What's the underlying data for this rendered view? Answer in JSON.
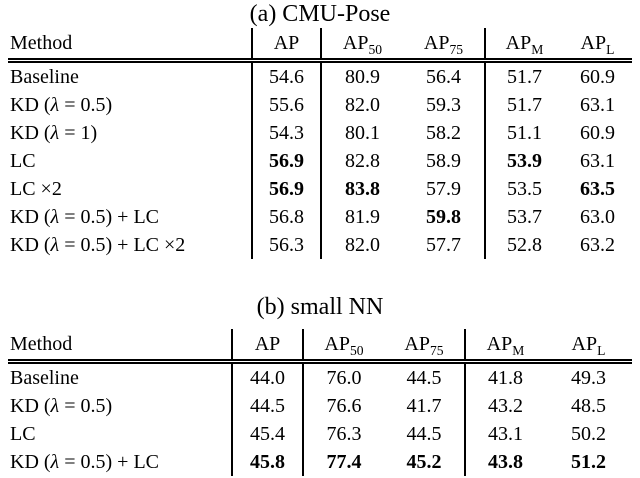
{
  "tables": [
    {
      "title": "(a) CMU-Pose",
      "columns": {
        "method": "Method",
        "headers": [
          {
            "text": "AP",
            "sub": ""
          },
          {
            "text": "AP",
            "sub": "50"
          },
          {
            "text": "AP",
            "sub": "75"
          },
          {
            "text": "AP",
            "sub": "M"
          },
          {
            "text": "AP",
            "sub": "L"
          }
        ]
      },
      "rows": [
        {
          "method": "Baseline",
          "values": [
            "54.6",
            "80.9",
            "56.4",
            "51.7",
            "60.9"
          ],
          "bold": [
            false,
            false,
            false,
            false,
            false
          ]
        },
        {
          "method": "KD (λ = 0.5)",
          "values": [
            "55.6",
            "82.0",
            "59.3",
            "51.7",
            "63.1"
          ],
          "bold": [
            false,
            false,
            false,
            false,
            false
          ]
        },
        {
          "method": "KD (λ = 1)",
          "values": [
            "54.3",
            "80.1",
            "58.2",
            "51.1",
            "60.9"
          ],
          "bold": [
            false,
            false,
            false,
            false,
            false
          ]
        },
        {
          "method": "LC",
          "values": [
            "56.9",
            "82.8",
            "58.9",
            "53.9",
            "63.1"
          ],
          "bold": [
            true,
            false,
            false,
            true,
            false
          ]
        },
        {
          "method": "LC ×2",
          "values": [
            "56.9",
            "83.8",
            "57.9",
            "53.5",
            "63.5"
          ],
          "bold": [
            true,
            true,
            false,
            false,
            true
          ]
        },
        {
          "method": "KD (λ = 0.5) + LC",
          "values": [
            "56.8",
            "81.9",
            "59.8",
            "53.7",
            "63.0"
          ],
          "bold": [
            false,
            false,
            true,
            false,
            false
          ]
        },
        {
          "method": "KD (λ = 0.5) + LC ×2",
          "values": [
            "56.3",
            "82.0",
            "57.7",
            "52.8",
            "63.2"
          ],
          "bold": [
            false,
            false,
            false,
            false,
            false
          ]
        }
      ]
    },
    {
      "title": "(b) small NN",
      "columns": {
        "method": "Method",
        "headers": [
          {
            "text": "AP",
            "sub": ""
          },
          {
            "text": "AP",
            "sub": "50"
          },
          {
            "text": "AP",
            "sub": "75"
          },
          {
            "text": "AP",
            "sub": "M"
          },
          {
            "text": "AP",
            "sub": "L"
          }
        ]
      },
      "rows": [
        {
          "method": "Baseline",
          "values": [
            "44.0",
            "76.0",
            "44.5",
            "41.8",
            "49.3"
          ],
          "bold": [
            false,
            false,
            false,
            false,
            false
          ]
        },
        {
          "method": "KD (λ = 0.5)",
          "values": [
            "44.5",
            "76.6",
            "41.7",
            "43.2",
            "48.5"
          ],
          "bold": [
            false,
            false,
            false,
            false,
            false
          ]
        },
        {
          "method": "LC",
          "values": [
            "45.4",
            "76.3",
            "44.5",
            "43.1",
            "50.2"
          ],
          "bold": [
            false,
            false,
            false,
            false,
            false
          ]
        },
        {
          "method": "KD (λ = 0.5) + LC",
          "values": [
            "45.8",
            "77.4",
            "45.2",
            "43.8",
            "51.2"
          ],
          "bold": [
            true,
            true,
            true,
            true,
            true
          ]
        }
      ]
    }
  ]
}
